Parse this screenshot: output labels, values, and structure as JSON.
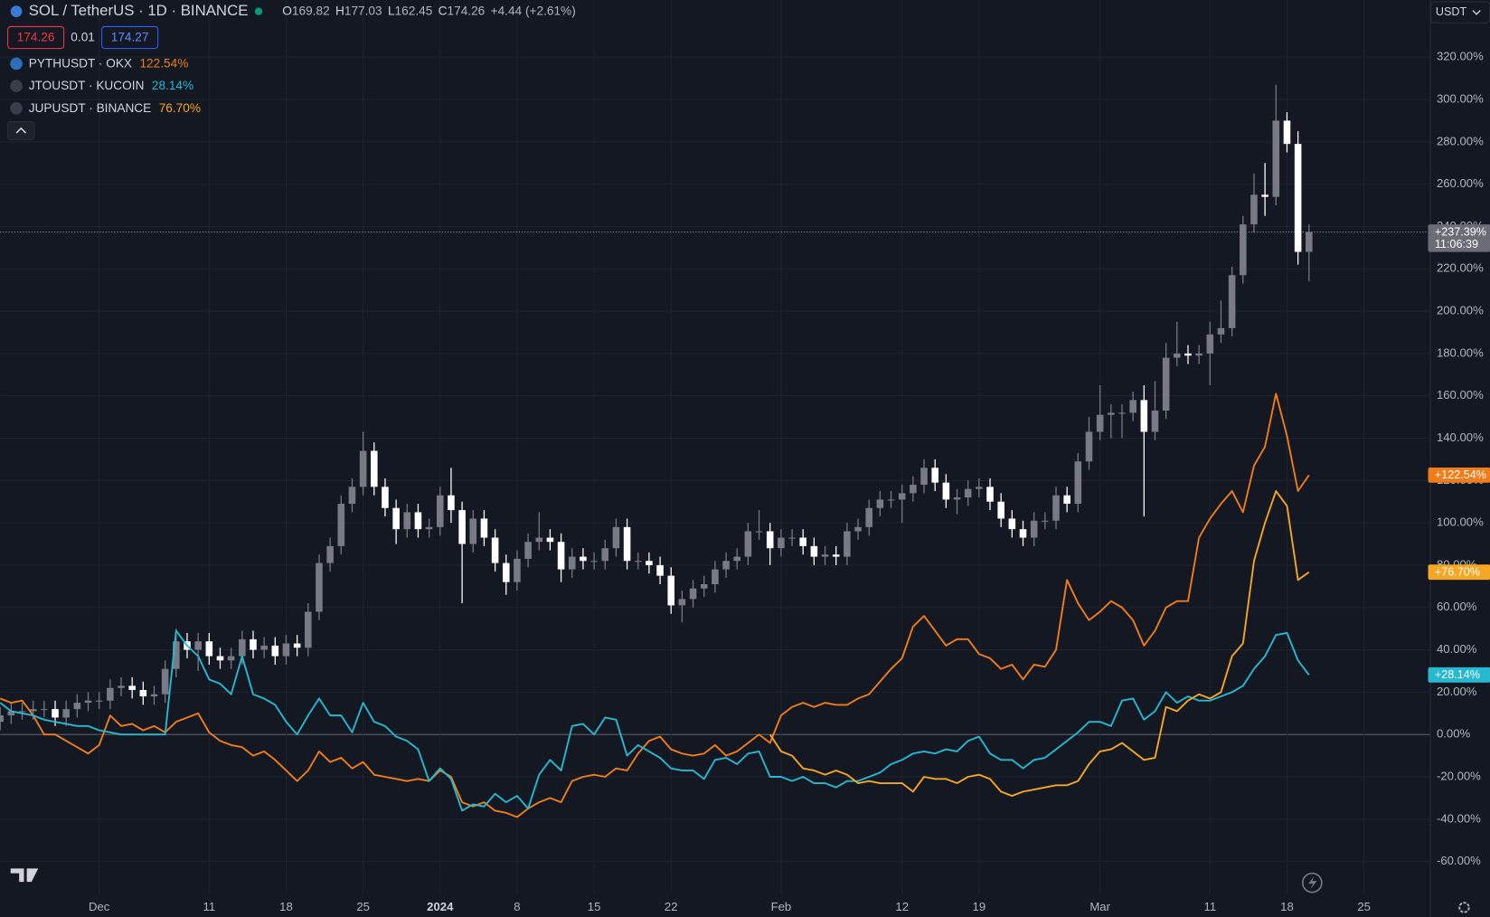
{
  "header": {
    "ohlc": [
      {
        "k": "O",
        "v": "169.82"
      },
      {
        "k": "H",
        "v": "177.03"
      },
      {
        "k": "L",
        "v": "162.45"
      },
      {
        "k": "C",
        "v": "174.26"
      }
    ],
    "change": "+4.44 (+2.61%)",
    "bid": "174.26",
    "spread": "0.01",
    "ask": "174.27",
    "currency": "USDT"
  },
  "chart_data": {
    "type": "candlestick",
    "title": "SOL / TetherUS · 1D · BINANCE",
    "categories": [
      null,
      null,
      null,
      null,
      null,
      null,
      null,
      null,
      null,
      "Dec",
      null,
      null,
      null,
      null,
      null,
      null,
      null,
      null,
      null,
      "11",
      null,
      null,
      null,
      null,
      null,
      null,
      "18",
      null,
      null,
      null,
      null,
      null,
      null,
      "25",
      null,
      null,
      null,
      null,
      null,
      null,
      "2024",
      null,
      null,
      null,
      null,
      null,
      null,
      "8",
      null,
      null,
      null,
      null,
      null,
      null,
      "15",
      null,
      null,
      null,
      null,
      null,
      null,
      "22",
      null,
      null,
      null,
      null,
      null,
      null,
      null,
      null,
      null,
      "Feb",
      null,
      null,
      null,
      null,
      null,
      null,
      null,
      null,
      null,
      null,
      "12",
      null,
      null,
      null,
      null,
      null,
      null,
      "19",
      null,
      null,
      null,
      null,
      null,
      null,
      null,
      null,
      null,
      null,
      "Mar",
      null,
      null,
      null,
      null,
      null,
      null,
      null,
      null,
      null,
      "11",
      null,
      null,
      null,
      null,
      null,
      null,
      "18",
      null,
      null,
      null,
      null,
      null,
      null,
      "25",
      null,
      null,
      null,
      null,
      null,
      null
    ],
    "ylim": [
      -75,
      347
    ],
    "yticks": [
      {
        "value": -60,
        "label": "-60.00%"
      },
      {
        "value": -40,
        "label": "-40.00%"
      },
      {
        "value": -20,
        "label": "-20.00%"
      },
      {
        "value": 0,
        "label": "0.00%"
      },
      {
        "value": 20,
        "label": "20.00%"
      },
      {
        "value": 40,
        "label": "40.00%"
      },
      {
        "value": 60,
        "label": "60.00%"
      },
      {
        "value": 80,
        "label": "80.00%"
      },
      {
        "value": 100,
        "label": "100.00%"
      },
      {
        "value": 120,
        "label": "120.00%"
      },
      {
        "value": 140,
        "label": "140.00%"
      },
      {
        "value": 160,
        "label": "160.00%"
      },
      {
        "value": 180,
        "label": "180.00%"
      },
      {
        "value": 200,
        "label": "200.00%"
      },
      {
        "value": 220,
        "label": "220.00%"
      },
      {
        "value": 240,
        "label": "240.00%"
      },
      {
        "value": 260,
        "label": "260.00%"
      },
      {
        "value": 280,
        "label": "280.00%"
      },
      {
        "value": 300,
        "label": "300.00%"
      },
      {
        "value": 320,
        "label": "320.00%"
      }
    ],
    "grid": true,
    "series": [
      {
        "type": "candlestick",
        "up_color": "#787b86",
        "down_color": "#ffffff",
        "axis_label": "+237.39%",
        "countdown": "11:06:39",
        "open": [
          6,
          9,
          11,
          11,
          12,
          12,
          8,
          12,
          15,
          16,
          16,
          22,
          23,
          21,
          18,
          19,
          31,
          44,
          40,
          44,
          37,
          35,
          37,
          45,
          40,
          42,
          37,
          43,
          41,
          58,
          81,
          89,
          109,
          117,
          134,
          117,
          107,
          97,
          105,
          97,
          98,
          113,
          106,
          90,
          102,
          93,
          81,
          72,
          83,
          91,
          93,
          91,
          78,
          84,
          82,
          82,
          88,
          98,
          82,
          82,
          80,
          75,
          61,
          64,
          69,
          71,
          78,
          82,
          84,
          96,
          96,
          88,
          93,
          93,
          89,
          84,
          85,
          84,
          96,
          98,
          107,
          111,
          111,
          114,
          118,
          126,
          119,
          111,
          112,
          116,
          117,
          110,
          102,
          97,
          93,
          101,
          101,
          113,
          109,
          129,
          143,
          151,
          152,
          152,
          158,
          143,
          153,
          178,
          180,
          179,
          180,
          189,
          192,
          217,
          241,
          255,
          254,
          290,
          279,
          228,
          null,
          null,
          null,
          null,
          null,
          null,
          null,
          null,
          null,
          null,
          null
        ],
        "high": [
          13,
          15,
          15,
          16,
          16,
          16,
          16,
          19,
          20,
          20,
          26,
          27,
          27,
          25,
          23,
          35,
          50,
          48,
          48,
          48,
          41,
          41,
          49,
          49,
          46,
          46,
          47,
          47,
          62,
          85,
          93,
          113,
          121,
          143,
          138,
          121,
          111,
          109,
          109,
          102,
          117,
          126,
          110,
          106,
          106,
          97,
          85,
          87,
          95,
          105,
          97,
          95,
          88,
          88,
          86,
          92,
          102,
          102,
          86,
          86,
          84,
          79,
          68,
          73,
          75,
          82,
          86,
          88,
          100,
          106,
          100,
          97,
          97,
          97,
          93,
          89,
          89,
          100,
          102,
          111,
          115,
          115,
          118,
          122,
          130,
          130,
          123,
          116,
          120,
          121,
          121,
          114,
          106,
          101,
          105,
          105,
          117,
          117,
          133,
          150,
          165,
          156,
          156,
          162,
          165,
          167,
          185,
          195,
          184,
          184,
          195,
          205,
          221,
          245,
          265,
          270,
          307,
          294,
          285,
          241,
          null,
          null,
          null,
          null,
          null,
          null,
          null,
          null,
          null,
          null,
          null
        ],
        "low": [
          2,
          5,
          7,
          7,
          8,
          4,
          4,
          8,
          11,
          12,
          12,
          18,
          17,
          14,
          14,
          15,
          27,
          36,
          30,
          33,
          31,
          31,
          33,
          36,
          36,
          33,
          33,
          37,
          37,
          54,
          77,
          85,
          105,
          113,
          113,
          103,
          90,
          93,
          93,
          93,
          94,
          100,
          62,
          86,
          89,
          77,
          66,
          68,
          79,
          87,
          87,
          72,
          74,
          78,
          78,
          78,
          84,
          78,
          78,
          76,
          71,
          57,
          53,
          60,
          65,
          67,
          74,
          78,
          80,
          92,
          80,
          84,
          89,
          85,
          80,
          80,
          80,
          80,
          92,
          94,
          103,
          107,
          100,
          110,
          114,
          115,
          107,
          104,
          108,
          112,
          106,
          98,
          93,
          89,
          89,
          97,
          97,
          105,
          105,
          125,
          139,
          140,
          140,
          148,
          103,
          139,
          149,
          174,
          175,
          175,
          165,
          185,
          188,
          213,
          237,
          245,
          250,
          275,
          222,
          214,
          null,
          null,
          null,
          null,
          null,
          null,
          null,
          null,
          null,
          null,
          null
        ],
        "close": [
          9,
          11,
          11,
          12,
          12,
          8,
          12,
          15,
          16,
          16,
          22,
          23,
          21,
          18,
          19,
          31,
          44,
          40,
          44,
          37,
          35,
          37,
          45,
          40,
          42,
          37,
          43,
          41,
          58,
          81,
          89,
          109,
          117,
          134,
          117,
          107,
          97,
          105,
          97,
          98,
          113,
          106,
          90,
          102,
          93,
          81,
          72,
          83,
          91,
          93,
          91,
          78,
          84,
          82,
          82,
          88,
          98,
          82,
          82,
          80,
          75,
          61,
          64,
          69,
          71,
          78,
          82,
          84,
          96,
          96,
          88,
          93,
          93,
          89,
          84,
          85,
          84,
          96,
          98,
          107,
          111,
          111,
          114,
          118,
          126,
          119,
          111,
          112,
          116,
          117,
          110,
          102,
          97,
          93,
          101,
          101,
          113,
          109,
          129,
          143,
          151,
          152,
          152,
          158,
          143,
          153,
          178,
          180,
          179,
          180,
          189,
          192,
          217,
          241,
          255,
          254,
          290,
          279,
          228,
          237.39,
          null,
          null,
          null,
          null,
          null,
          null,
          null,
          null,
          null,
          null,
          null
        ]
      },
      {
        "type": "line",
        "name": "PYTHUSDT · OKX",
        "color": "#f07d1a",
        "legend_label": "122.54%",
        "axis_label": "+122.54%",
        "values": [
          17,
          15,
          16,
          9,
          0,
          0,
          -3,
          -6,
          -9,
          -5,
          9,
          4,
          5,
          2,
          4,
          1,
          6,
          8,
          10,
          1,
          -3,
          -5,
          -6,
          -10,
          -8,
          -12,
          -17,
          -22,
          -17,
          -8,
          -13,
          -11,
          -16,
          -13,
          -19,
          -20,
          -21,
          -22,
          -21,
          -22,
          -17,
          -20,
          -32,
          -34,
          -32,
          -36,
          -37,
          -39,
          -35,
          -32,
          -30,
          -32,
          -22,
          -20,
          -19,
          -20,
          -16,
          -17,
          -9,
          -3,
          -1,
          -7,
          -9,
          -10,
          -9,
          -5,
          -10,
          -8,
          -4,
          0,
          -4,
          9,
          13,
          15,
          13,
          15,
          14,
          14,
          17,
          19,
          25,
          31,
          36,
          51,
          56,
          49,
          42,
          45,
          45,
          38,
          36,
          31,
          33,
          26,
          33,
          32,
          40,
          73,
          62,
          54,
          58,
          63,
          60,
          54,
          42,
          49,
          60,
          63,
          63,
          93,
          102,
          109,
          115,
          105,
          127,
          136,
          161,
          141,
          115,
          122.54,
          null,
          null,
          null,
          null,
          null,
          null,
          null,
          null,
          null,
          null,
          null
        ]
      },
      {
        "type": "line",
        "name": "JTOUSDT · KUCOIN",
        "color": "#26b9cf",
        "legend_label": "28.14%",
        "axis_label": "+28.14%",
        "values": [
          15,
          11,
          10,
          9,
          7,
          6,
          5,
          4,
          4,
          2,
          1,
          0,
          0,
          0,
          0,
          0,
          49,
          42,
          37,
          26,
          24,
          19,
          37,
          19,
          17,
          14,
          6,
          0,
          9,
          17,
          9,
          9,
          1,
          15,
          6,
          4,
          -1,
          -3,
          -7,
          -22,
          -16,
          -21,
          -36,
          -33,
          -34,
          -28,
          -32,
          -29,
          -35,
          -19,
          -12,
          -17,
          4,
          5,
          0,
          8,
          7,
          -10,
          -5,
          -8,
          -11,
          -16,
          -17,
          -17,
          -21,
          -12,
          -11,
          -14,
          -9,
          -8,
          -20,
          -20,
          -22,
          -20,
          -23,
          -23,
          -25,
          -22,
          -22,
          -20,
          -18,
          -14,
          -12,
          -9,
          -8,
          -9,
          -7,
          -8,
          -3,
          -1,
          -9,
          -12,
          -12,
          -16,
          -12,
          -11,
          -7,
          -3,
          1,
          6,
          6,
          4,
          16,
          17,
          7,
          11,
          20,
          15,
          18,
          16,
          16,
          18,
          20,
          23,
          31,
          37,
          47,
          48,
          35,
          28.14,
          null,
          null,
          null,
          null,
          null,
          null,
          null,
          null,
          null,
          null,
          null
        ]
      },
      {
        "type": "line",
        "name": "JUPUSDT · BINANCE",
        "color": "#f5a623",
        "legend_label": "76.70%",
        "axis_label": "+76.70%",
        "values": [
          null,
          null,
          null,
          null,
          null,
          null,
          null,
          null,
          null,
          null,
          null,
          null,
          null,
          null,
          null,
          null,
          null,
          null,
          null,
          null,
          null,
          null,
          null,
          null,
          null,
          null,
          null,
          null,
          null,
          null,
          null,
          null,
          null,
          null,
          null,
          null,
          null,
          null,
          null,
          null,
          null,
          null,
          null,
          null,
          null,
          null,
          null,
          null,
          null,
          null,
          null,
          null,
          null,
          null,
          null,
          null,
          null,
          null,
          null,
          null,
          null,
          null,
          null,
          null,
          null,
          null,
          null,
          null,
          null,
          null,
          0,
          -8,
          -10,
          -16,
          -17,
          -19,
          -17,
          -19,
          -23,
          -22,
          -23,
          -23,
          -23,
          -27,
          -20,
          -21,
          -21,
          -23,
          -20,
          -19,
          -21,
          -27,
          -29,
          -27,
          -26,
          -25,
          -24,
          -24,
          -22,
          -14,
          -8,
          -7,
          -4,
          -8,
          -12,
          -11,
          13,
          11,
          16,
          19,
          17,
          20,
          37,
          43,
          82,
          100,
          115,
          108,
          73,
          76.7,
          null,
          null,
          null,
          null,
          null,
          null,
          null,
          null,
          null,
          null,
          null
        ]
      }
    ]
  }
}
